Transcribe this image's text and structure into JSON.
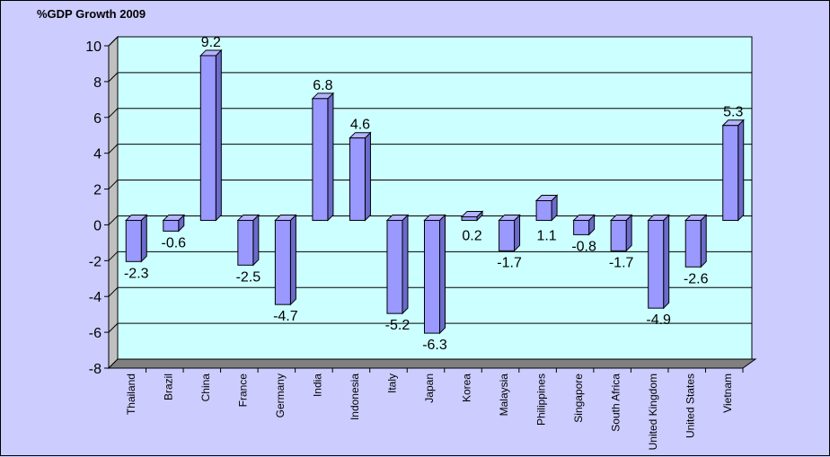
{
  "chart_data": {
    "type": "bar",
    "title": "%GDP Growth 2009",
    "xlabel": "",
    "ylabel": "",
    "ylim": [
      -8,
      10
    ],
    "yticks": [
      -8,
      -6,
      -4,
      -2,
      0,
      2,
      4,
      6,
      8,
      10
    ],
    "grid": true,
    "categories": [
      "Thailand",
      "Brazil",
      "China",
      "France",
      "Germany",
      "India",
      "Indonesia",
      "Italy",
      "Japan",
      "Korea",
      "Malaysia",
      "Philippines",
      "Singapore",
      "South Africa",
      "United Kingdom",
      "United States",
      "Vietnam"
    ],
    "values": [
      -2.3,
      -0.6,
      9.2,
      -2.5,
      -4.7,
      6.8,
      4.6,
      -5.2,
      -6.3,
      0.2,
      -1.7,
      1.1,
      -0.8,
      -1.7,
      -4.9,
      -2.6,
      5.3
    ],
    "labels": [
      "-2.3",
      "-0.6",
      "9.2",
      "-2.5",
      "-4.7",
      "6.8",
      "4.6",
      "-5.2",
      "-6.3",
      "0.2",
      "-1.7",
      "1.1",
      "-0.8",
      "-1.7",
      "-4.9",
      "-2.6",
      "5.3"
    ]
  },
  "colors": {
    "page_background": "#ccccff",
    "plot_background": "#ccffff",
    "plot_side": "#c0c0c0",
    "floor": "#808080",
    "bar_front": "#9999ff",
    "bar_top": "#b3b3ff",
    "bar_side": "#6b6bcc",
    "grid": "#000000"
  }
}
